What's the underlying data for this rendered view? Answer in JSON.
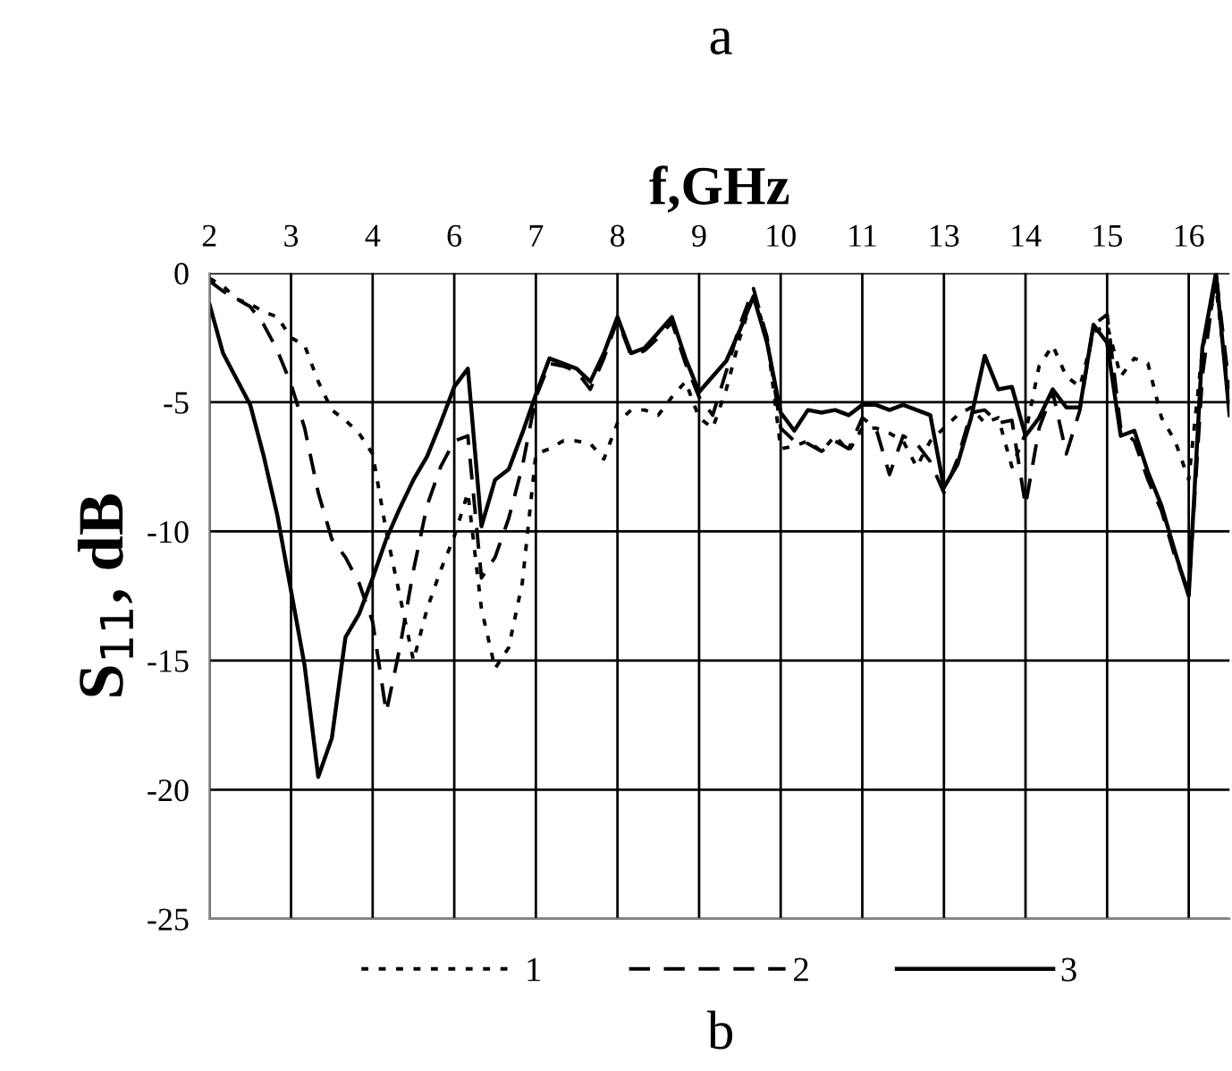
{
  "chart_data": {
    "type": "line",
    "title": "a",
    "xlabel": "f,GHz",
    "ylabel": "S$_{11}$, dB",
    "annotations": [
      "b"
    ],
    "categories": [
      "2",
      null,
      null,
      null,
      null,
      null,
      "3",
      null,
      null,
      null,
      null,
      null,
      "4",
      null,
      null,
      null,
      null,
      null,
      "6",
      null,
      null,
      null,
      null,
      null,
      "7",
      null,
      null,
      null,
      null,
      null,
      "8",
      null,
      null,
      null,
      null,
      null,
      "9",
      null,
      null,
      null,
      null,
      null,
      "10",
      null,
      null,
      null,
      null,
      null,
      "11",
      null,
      null,
      null,
      null,
      null,
      "13",
      null,
      null,
      null,
      null,
      null,
      "14",
      null,
      null,
      null,
      null,
      null,
      "15",
      null,
      null,
      null,
      null,
      null,
      "16",
      null,
      null,
      null
    ],
    "series": [
      {
        "name": "1",
        "color": "#000000",
        "line_style": "dotted",
        "values": [
          -0.2,
          -0.5,
          -1.0,
          -1.2,
          -1.5,
          -1.7,
          -2.5,
          -2.8,
          -4.2,
          -5.3,
          -5.7,
          -6.2,
          -7.0,
          -10.0,
          -12.5,
          -15.0,
          -13.0,
          -11.5,
          -10.2,
          -8.5,
          -13.0,
          -15.3,
          -14.5,
          -12.0,
          -7.0,
          -6.8,
          -6.5,
          -6.5,
          -6.6,
          -7.2,
          -5.8,
          -5.3,
          -5.3,
          -5.5,
          -4.8,
          -4.2,
          -5.6,
          -6.0,
          -4.5,
          -2.5,
          -0.8,
          -2.5,
          -6.8,
          -6.7,
          -6.5,
          -6.9,
          -6.3,
          -6.9,
          -6.0,
          -6.0,
          -6.2,
          -6.5,
          -7.5,
          -6.5,
          -6.0,
          -5.5,
          -5.2,
          -5.8,
          -5.6,
          -7.5,
          -6.2,
          -3.6,
          -2.8,
          -4.0,
          -4.4,
          -2.3,
          -2.0,
          -4.0,
          -3.3,
          -3.5,
          -5.6,
          -6.5,
          -8.0,
          -3.0,
          -0.5,
          -5.0
        ]
      },
      {
        "name": "2",
        "color": "#000000",
        "line_style": "dashed",
        "values": [
          -0.3,
          -0.7,
          -1.0,
          -1.3,
          -2.0,
          -3.0,
          -4.3,
          -6.0,
          -8.5,
          -10.3,
          -11.0,
          -12.0,
          -13.5,
          -17.0,
          -14.5,
          -11.5,
          -9.0,
          -7.5,
          -6.5,
          -6.3,
          -11.8,
          -11.0,
          -9.5,
          -7.5,
          -4.8,
          -3.5,
          -3.6,
          -3.8,
          -4.5,
          -3.3,
          -1.8,
          -3.2,
          -3.0,
          -2.5,
          -1.9,
          -3.5,
          -4.8,
          -5.5,
          -3.8,
          -2.0,
          -0.6,
          -2.5,
          -6.0,
          -6.5,
          -6.6,
          -6.9,
          -6.5,
          -6.8,
          -5.6,
          -6.0,
          -7.8,
          -6.3,
          -6.6,
          -7.3,
          -8.5,
          -7.2,
          -5.4,
          -5.3,
          -5.8,
          -5.7,
          -9.0,
          -6.0,
          -4.6,
          -7.0,
          -5.3,
          -2.0,
          -1.6,
          -6.0,
          -6.5,
          -8.0,
          -9.2,
          -11.0,
          -12.3,
          -4.0,
          0,
          -4.5
        ]
      },
      {
        "name": "3",
        "color": "#000000",
        "line_style": "solid",
        "values": [
          -1.2,
          -3.1,
          -4.1,
          -5.1,
          -7.1,
          -9.4,
          -12.3,
          -15.2,
          -19.5,
          -18.0,
          -14.1,
          -13.2,
          -11.8,
          -10.3,
          -9.1,
          -8.0,
          -7.1,
          -5.8,
          -4.4,
          -3.7,
          -9.8,
          -8.0,
          -7.6,
          -6.2,
          -4.7,
          -3.3,
          -3.5,
          -3.7,
          -4.2,
          -3.1,
          -1.7,
          -3.1,
          -2.9,
          -2.3,
          -1.7,
          -3.3,
          -4.6,
          -4.0,
          -3.4,
          -2.2,
          -0.9,
          -2.7,
          -5.4,
          -6.1,
          -5.3,
          -5.4,
          -5.3,
          -5.5,
          -5.1,
          -5.1,
          -5.3,
          -5.1,
          -5.3,
          -5.5,
          -8.3,
          -7.4,
          -5.6,
          -3.2,
          -4.5,
          -4.4,
          -6.3,
          -5.6,
          -4.5,
          -5.2,
          -5.2,
          -2.0,
          -2.7,
          -6.3,
          -6.1,
          -7.7,
          -9.0,
          -10.8,
          -12.5,
          -2.9,
          0,
          -5.5
        ]
      }
    ],
    "ylim": [
      -25,
      0
    ],
    "yticks": [
      -25,
      -20,
      -15,
      -10,
      -5,
      0
    ],
    "grid": true,
    "legend": "bottom"
  }
}
